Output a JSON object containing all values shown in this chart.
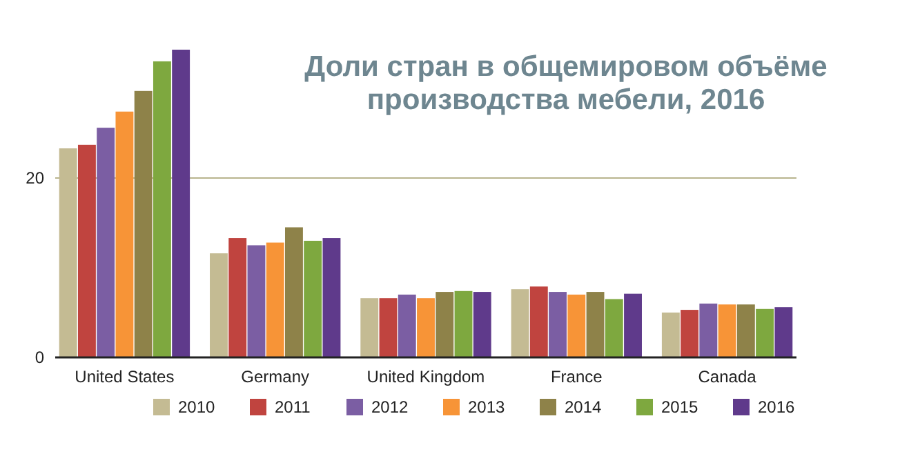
{
  "chart_data": {
    "type": "bar",
    "title": "Доли стран в общемировом объёме производства мебели, 2016",
    "categories": [
      "United States",
      "Germany",
      "United Kingdom",
      "France",
      "Canada"
    ],
    "series": [
      {
        "name": "2010",
        "color": "#c4bb93",
        "values": [
          23.3,
          11.6,
          6.6,
          7.6,
          5.0
        ]
      },
      {
        "name": "2011",
        "color": "#c0443f",
        "values": [
          23.7,
          13.3,
          6.6,
          7.9,
          5.3
        ]
      },
      {
        "name": "2012",
        "color": "#7b5ea3",
        "values": [
          25.6,
          12.5,
          7.0,
          7.3,
          6.0
        ]
      },
      {
        "name": "2013",
        "color": "#f79437",
        "values": [
          27.4,
          12.8,
          6.6,
          7.0,
          5.9
        ]
      },
      {
        "name": "2014",
        "color": "#8e8249",
        "values": [
          29.7,
          14.5,
          7.3,
          7.3,
          5.9
        ]
      },
      {
        "name": "2015",
        "color": "#7ea83f",
        "values": [
          33.0,
          13.0,
          7.4,
          6.5,
          5.4
        ]
      },
      {
        "name": "2016",
        "color": "#5f3a8b",
        "values": [
          34.3,
          13.3,
          7.3,
          7.1,
          5.6
        ]
      }
    ],
    "ylim": [
      0,
      34.3
    ],
    "yticks": [
      0,
      20
    ],
    "ref_lines": [
      {
        "axis": "y",
        "value": 20,
        "color": "#b8b48e"
      }
    ],
    "legend": "bottom"
  }
}
